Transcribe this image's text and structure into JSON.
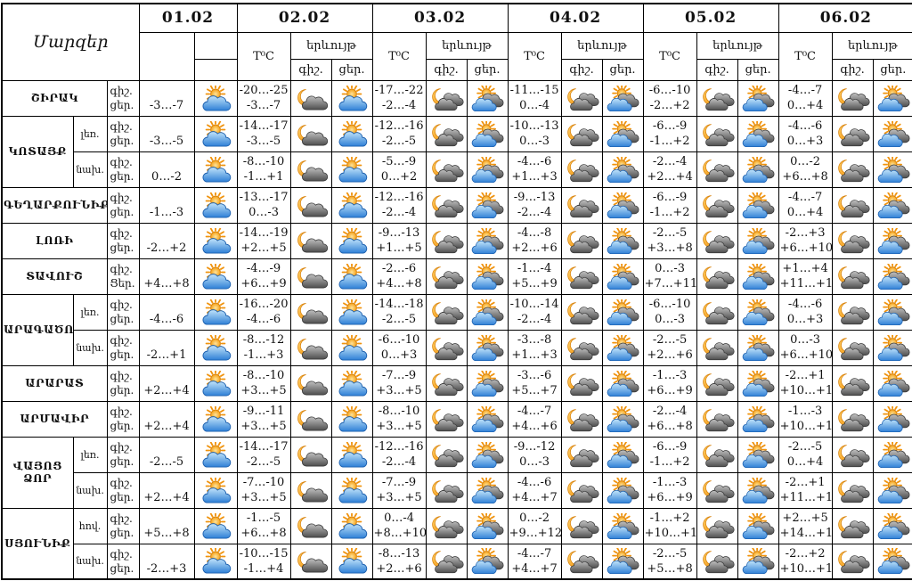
{
  "header": {
    "corner": "Մարզեր",
    "dates": [
      "01.02",
      "02.02",
      "03.02",
      "04.02",
      "05.02",
      "06.02"
    ],
    "temp": "T⁰C",
    "phenomenon": "երևույթ",
    "night": "գիշ.",
    "day": "ցեր."
  },
  "icon_palette": {
    "sun_light": "#FFE49B",
    "sun_dark": "#F49F16",
    "sun_stroke": "#D9820A",
    "sun_ray": "#F0930D",
    "moon_light": "#FFD36B",
    "moon_dark": "#F08A00",
    "moon_stroke": "#D9820A",
    "cloud_blue_light": "#C2E4FA",
    "cloud_blue_dark": "#2E7FD6",
    "cloud_blue_stroke": "#1B5FAE",
    "cloud_gray_light": "#C0C0C0",
    "cloud_gray_dark": "#4E4E4E",
    "cloud_gray_stroke": "#3A3A3A",
    "border": "#000000"
  },
  "groups": [
    {
      "region": "ՇԻՐԱԿ",
      "rows": [
        {
          "zone": null,
          "part_labels": [
            "գիշ.",
            "ցեր."
          ],
          "first": {
            "temp": "-3…-7",
            "icon": "sun_cloud"
          },
          "days": [
            {
              "night": "-20…-25",
              "day": "-3…-7",
              "night_icon": "moon_cloud",
              "day_icon": "sun_cloud"
            },
            {
              "night": "-17…-22",
              "day": "-2…-4",
              "night_icon": "moon_clouds",
              "day_icon": "sun_clouds"
            },
            {
              "night": "-11…-15",
              "day": "0…-4",
              "night_icon": "moon_clouds",
              "day_icon": "sun_clouds"
            },
            {
              "night": "-6…-10",
              "day": "-2…+2",
              "night_icon": "moon_clouds",
              "day_icon": "sun_clouds"
            },
            {
              "night": "-4…-7",
              "day": "0…+4",
              "night_icon": "moon_clouds",
              "day_icon": "sun_clouds"
            }
          ]
        }
      ]
    },
    {
      "region": "ԿՈՏԱՅՔ",
      "rows": [
        {
          "zone": "լեռ.",
          "part_labels": [
            "գիշ.",
            "ցեր."
          ],
          "first": {
            "temp": "-3…-5",
            "icon": "sun_cloud"
          },
          "days": [
            {
              "night": "-14…-17",
              "day": "-3…-5",
              "night_icon": "moon_cloud",
              "day_icon": "sun_cloud"
            },
            {
              "night": "-12…-16",
              "day": "-2…-5",
              "night_icon": "moon_clouds",
              "day_icon": "sun_clouds"
            },
            {
              "night": "-10…-13",
              "day": "0…-3",
              "night_icon": "moon_clouds",
              "day_icon": "sun_clouds"
            },
            {
              "night": "-6…-9",
              "day": "-1…+2",
              "night_icon": "moon_clouds",
              "day_icon": "sun_clouds"
            },
            {
              "night": "-4…-6",
              "day": "0…+3",
              "night_icon": "moon_clouds",
              "day_icon": "sun_clouds"
            }
          ]
        },
        {
          "zone": "նախ.",
          "part_labels": [
            "գիշ.",
            "ցեր."
          ],
          "first": {
            "temp": "0…-2",
            "icon": "sun_cloud"
          },
          "days": [
            {
              "night": "-8…-10",
              "day": "-1…+1",
              "night_icon": "moon_cloud",
              "day_icon": "sun_cloud"
            },
            {
              "night": "-5…-9",
              "day": "0…+2",
              "night_icon": "moon_clouds",
              "day_icon": "sun_clouds"
            },
            {
              "night": "-4…-6",
              "day": "+1…+3",
              "night_icon": "moon_clouds",
              "day_icon": "sun_clouds"
            },
            {
              "night": "-2…-4",
              "day": "+2…+4",
              "night_icon": "moon_clouds",
              "day_icon": "sun_clouds"
            },
            {
              "night": "0…-2",
              "day": "+6…+8",
              "night_icon": "moon_clouds",
              "day_icon": "sun_clouds"
            }
          ]
        }
      ]
    },
    {
      "region": "ԳԵՂԱՐՔՈՒՆԻՔ",
      "rows": [
        {
          "zone": null,
          "part_labels": [
            "գիշ.",
            "ցեր."
          ],
          "first": {
            "temp": "-1…-3",
            "icon": "sun_cloud"
          },
          "days": [
            {
              "night": "-13…-17",
              "day": "0…-3",
              "night_icon": "moon_cloud",
              "day_icon": "sun_cloud"
            },
            {
              "night": "-12…-16",
              "day": "-2…-4",
              "night_icon": "moon_clouds",
              "day_icon": "sun_clouds"
            },
            {
              "night": "-9…-13",
              "day": "-2…-4",
              "night_icon": "moon_clouds",
              "day_icon": "sun_clouds"
            },
            {
              "night": "-6…-9",
              "day": "-1…+2",
              "night_icon": "moon_clouds",
              "day_icon": "sun_clouds"
            },
            {
              "night": "-4…-7",
              "day": "0…+4",
              "night_icon": "moon_clouds",
              "day_icon": "sun_clouds"
            }
          ]
        }
      ]
    },
    {
      "region": "ԼՈՌԻ",
      "rows": [
        {
          "zone": null,
          "part_labels": [
            "գիշ.",
            "ցեր."
          ],
          "first": {
            "temp": "-2…+2",
            "icon": "sun_cloud"
          },
          "days": [
            {
              "night": "-14…-19",
              "day": "+2…+5",
              "night_icon": "moon_cloud",
              "day_icon": "sun_cloud"
            },
            {
              "night": "-9…-13",
              "day": "+1…+5",
              "night_icon": "moon_clouds",
              "day_icon": "sun_clouds"
            },
            {
              "night": "-4…-8",
              "day": "+2…+6",
              "night_icon": "moon_clouds",
              "day_icon": "sun_clouds"
            },
            {
              "night": "-2…-5",
              "day": "+3…+8",
              "night_icon": "moon_clouds",
              "day_icon": "sun_clouds"
            },
            {
              "night": "-2…+3",
              "day": "+6…+10",
              "night_icon": "moon_clouds",
              "day_icon": "sun_clouds"
            }
          ]
        }
      ]
    },
    {
      "region": "ՏԱՎՈՒՇ",
      "rows": [
        {
          "zone": null,
          "part_labels": [
            "գիշ.",
            "Ցեր."
          ],
          "first": {
            "temp": "+4…+8",
            "icon": "sun_cloud"
          },
          "days": [
            {
              "night": "-4…-9",
              "day": "+6…+9",
              "night_icon": "moon_cloud",
              "day_icon": "sun_cloud"
            },
            {
              "night": "-2…-6",
              "day": "+4…+8",
              "night_icon": "moon_clouds",
              "day_icon": "sun_clouds"
            },
            {
              "night": "-1…-4",
              "day": "+5…+9",
              "night_icon": "moon_clouds",
              "day_icon": "sun_clouds"
            },
            {
              "night": "0…-3",
              "day": "+7…+11",
              "night_icon": "moon_clouds",
              "day_icon": "sun_clouds"
            },
            {
              "night": "+1…+4",
              "day": "+11…+15",
              "night_icon": "moon_clouds",
              "day_icon": "sun_clouds"
            }
          ]
        }
      ]
    },
    {
      "region": "ԱՐԱԳԱԾՈՏՆ",
      "rows": [
        {
          "zone": "լեռ.",
          "part_labels": [
            "գիշ.",
            "ցեր."
          ],
          "first": {
            "temp": "-4…-6",
            "icon": "sun_cloud"
          },
          "days": [
            {
              "night": "-16…-20",
              "day": "-4…-6",
              "night_icon": "moon_cloud",
              "day_icon": "sun_cloud"
            },
            {
              "night": "-14…-18",
              "day": "-2…-5",
              "night_icon": "moon_clouds",
              "day_icon": "sun_clouds"
            },
            {
              "night": "-10…-14",
              "day": "-2…-4",
              "night_icon": "moon_clouds",
              "day_icon": "sun_clouds"
            },
            {
              "night": "-6…-10",
              "day": "0…-3",
              "night_icon": "moon_clouds",
              "day_icon": "sun_clouds"
            },
            {
              "night": "-4…-6",
              "day": "0…+3",
              "night_icon": "moon_clouds",
              "day_icon": "sun_clouds"
            }
          ]
        },
        {
          "zone": "նախ.",
          "part_labels": [
            "գիշ.",
            "ցեր."
          ],
          "first": {
            "temp": "-2…+1",
            "icon": "sun_cloud"
          },
          "days": [
            {
              "night": "-8…-12",
              "day": "-1…+3",
              "night_icon": "moon_cloud",
              "day_icon": "sun_cloud"
            },
            {
              "night": "-6…-10",
              "day": "0…+3",
              "night_icon": "moon_clouds",
              "day_icon": "sun_clouds"
            },
            {
              "night": "-3…-8",
              "day": "+1…+3",
              "night_icon": "moon_clouds",
              "day_icon": "sun_clouds"
            },
            {
              "night": "-2…-5",
              "day": "+2…+6",
              "night_icon": "moon_clouds",
              "day_icon": "sun_clouds"
            },
            {
              "night": "0…-3",
              "day": "+6…+10",
              "night_icon": "moon_clouds",
              "day_icon": "sun_clouds"
            }
          ]
        }
      ]
    },
    {
      "region": "ԱՐԱՐԱՏ",
      "rows": [
        {
          "zone": null,
          "part_labels": [
            "գիշ.",
            "ցեր."
          ],
          "first": {
            "temp": "+2…+4",
            "icon": "sun_cloud"
          },
          "days": [
            {
              "night": "-8…-10",
              "day": "+3…+5",
              "night_icon": "moon_cloud",
              "day_icon": "sun_cloud"
            },
            {
              "night": "-7…-9",
              "day": "+3…+5",
              "night_icon": "moon_clouds",
              "day_icon": "sun_clouds"
            },
            {
              "night": "-3…-6",
              "day": "+5…+7",
              "night_icon": "moon_clouds",
              "day_icon": "sun_clouds"
            },
            {
              "night": "-1…-3",
              "day": "+6…+9",
              "night_icon": "moon_clouds",
              "day_icon": "sun_clouds"
            },
            {
              "night": "-2…+1",
              "day": "+10…+13",
              "night_icon": "moon_clouds",
              "day_icon": "sun_clouds"
            }
          ]
        }
      ]
    },
    {
      "region": "ԱՐՄԱՎԻՐ",
      "rows": [
        {
          "zone": null,
          "part_labels": [
            "գիշ.",
            "ցեր."
          ],
          "first": {
            "temp": "+2…+4",
            "icon": "sun_cloud"
          },
          "days": [
            {
              "night": "-9…-11",
              "day": "+3…+5",
              "night_icon": "moon_cloud",
              "day_icon": "sun_cloud"
            },
            {
              "night": "-8…-10",
              "day": "+3…+5",
              "night_icon": "moon_clouds",
              "day_icon": "sun_clouds"
            },
            {
              "night": "-4…-7",
              "day": "+4…+6",
              "night_icon": "moon_clouds",
              "day_icon": "sun_clouds"
            },
            {
              "night": "-2…-4",
              "day": "+6…+8",
              "night_icon": "moon_clouds",
              "day_icon": "sun_clouds"
            },
            {
              "night": "-1…-3",
              "day": "+10…+12",
              "night_icon": "moon_clouds",
              "day_icon": "sun_clouds"
            }
          ]
        }
      ]
    },
    {
      "region": "ՎԱՅՈՑ ՁՈՐ",
      "rows": [
        {
          "zone": "լեռ.",
          "part_labels": [
            "գիշ.",
            "ցեր."
          ],
          "first": {
            "temp": "-2…-5",
            "icon": "sun_cloud"
          },
          "days": [
            {
              "night": "-14…-17",
              "day": "-2…-5",
              "night_icon": "moon_cloud",
              "day_icon": "sun_cloud"
            },
            {
              "night": "-12…-16",
              "day": "-2…-4",
              "night_icon": "moon_clouds",
              "day_icon": "sun_clouds"
            },
            {
              "night": "-9…-12",
              "day": "0…-3",
              "night_icon": "moon_clouds",
              "day_icon": "sun_clouds"
            },
            {
              "night": "-6…-9",
              "day": "-1…+2",
              "night_icon": "moon_clouds",
              "day_icon": "sun_clouds"
            },
            {
              "night": "-2…-5",
              "day": "0…+4",
              "night_icon": "moon_clouds",
              "day_icon": "sun_clouds"
            }
          ]
        },
        {
          "zone": "նախ.",
          "part_labels": [
            "գիշ.",
            "ցեր."
          ],
          "first": {
            "temp": "+2…+4",
            "icon": "sun_cloud"
          },
          "days": [
            {
              "night": "-7…-10",
              "day": "+3…+5",
              "night_icon": "moon_cloud",
              "day_icon": "sun_cloud"
            },
            {
              "night": "-7…-9",
              "day": "+3…+5",
              "night_icon": "moon_clouds",
              "day_icon": "sun_clouds"
            },
            {
              "night": "-4…-6",
              "day": "+4…+7",
              "night_icon": "moon_clouds",
              "day_icon": "sun_clouds"
            },
            {
              "night": "-1…-3",
              "day": "+6…+9",
              "night_icon": "moon_clouds",
              "day_icon": "sun_clouds"
            },
            {
              "night": "-2…+1",
              "day": "+11…+14",
              "night_icon": "moon_clouds",
              "day_icon": "sun_clouds"
            }
          ]
        }
      ]
    },
    {
      "region": "ՍՅՈՒՆԻՔ",
      "rows": [
        {
          "zone": "հով.",
          "part_labels": [
            "գիշ.",
            "ցեր."
          ],
          "first": {
            "temp": "+5…+8",
            "icon": "sun_cloud"
          },
          "days": [
            {
              "night": "-1…-5",
              "day": "+6…+8",
              "night_icon": "moon_cloud",
              "day_icon": "sun_cloud"
            },
            {
              "night": "0…-4",
              "day": "+8…+10",
              "night_icon": "moon_clouds",
              "day_icon": "sun_clouds"
            },
            {
              "night": "0…-2",
              "day": "+9…+12",
              "night_icon": "moon_clouds",
              "day_icon": "sun_clouds"
            },
            {
              "night": "-1…+2",
              "day": "+10…+13",
              "night_icon": "moon_clouds",
              "day_icon": "sun_clouds"
            },
            {
              "night": "+2…+5",
              "day": "+14…+18",
              "night_icon": "moon_clouds",
              "day_icon": "sun_clouds"
            }
          ]
        },
        {
          "zone": "նախ.",
          "part_labels": [
            "գիշ.",
            "ցեր."
          ],
          "first": {
            "temp": "-2…+3",
            "icon": "sun_cloud"
          },
          "days": [
            {
              "night": "-10…-15",
              "day": "-1…+4",
              "night_icon": "moon_cloud",
              "day_icon": "sun_cloud"
            },
            {
              "night": "-8…-13",
              "day": "+2…+6",
              "night_icon": "moon_clouds",
              "day_icon": "sun_clouds"
            },
            {
              "night": "-4…-7",
              "day": "+4…+7",
              "night_icon": "moon_clouds",
              "day_icon": "sun_clouds"
            },
            {
              "night": "-2…-5",
              "day": "+5…+8",
              "night_icon": "moon_clouds",
              "day_icon": "sun_clouds"
            },
            {
              "night": "-2…+2",
              "day": "+10…+13",
              "night_icon": "moon_clouds",
              "day_icon": "sun_clouds"
            }
          ]
        }
      ]
    }
  ]
}
